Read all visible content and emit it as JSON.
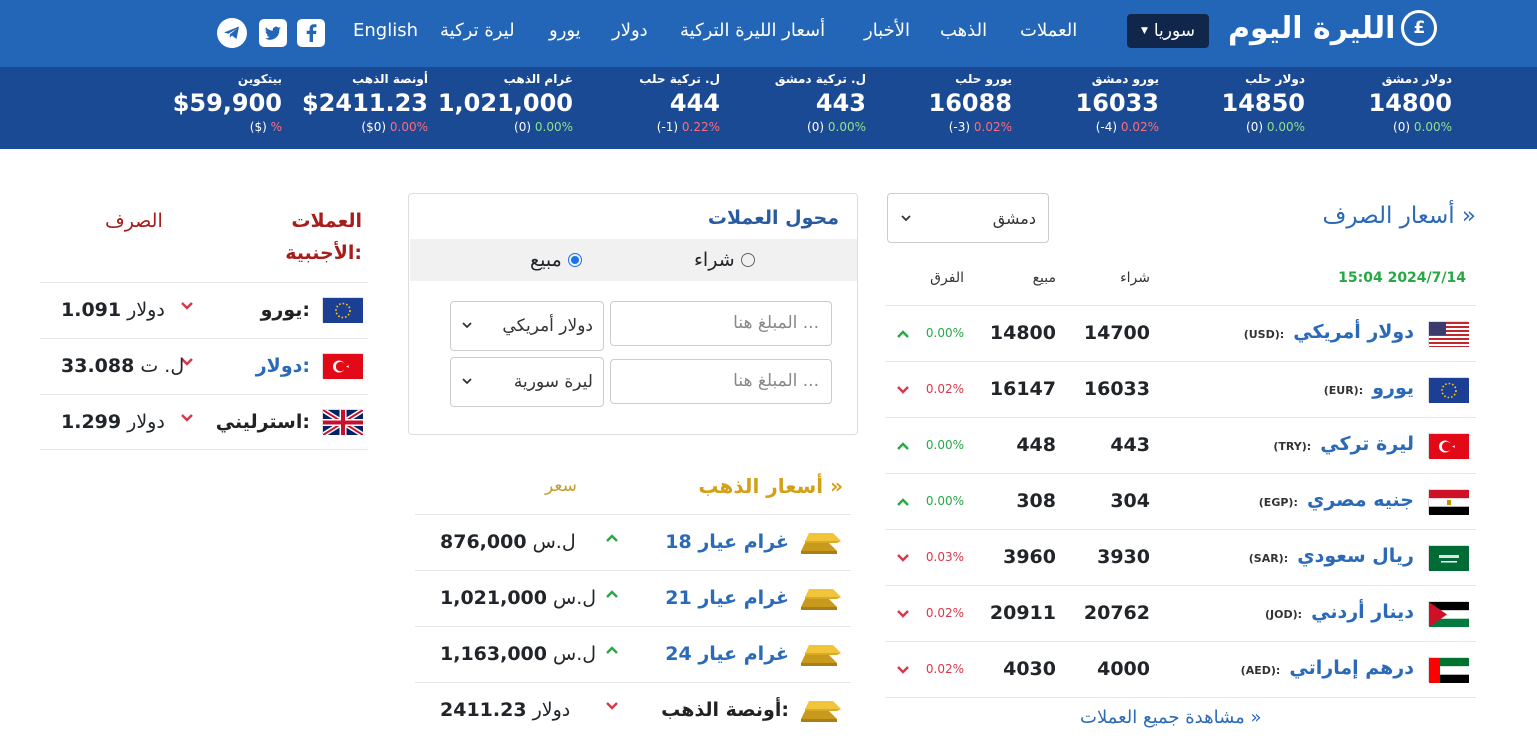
{
  "nav": {
    "logo_text": "الليرة اليوم",
    "country": "سوريا",
    "menu": [
      "العملات",
      "الذهب",
      "الأخبار",
      "أسعار الليرة التركية",
      "دولار",
      "يورو",
      "ليرة تركية",
      "English"
    ],
    "social": [
      "facebook-icon",
      "twitter-icon",
      "telegram-icon"
    ]
  },
  "ticker": [
    {
      "name": "دولار دمشق",
      "value": "14800",
      "delta": "(0)",
      "pct": "0.00%",
      "dir": "up"
    },
    {
      "name": "دولار حلب",
      "value": "14850",
      "delta": "(0)",
      "pct": "0.00%",
      "dir": "up"
    },
    {
      "name": "يورو دمشق",
      "value": "16033",
      "delta": "(-4)",
      "pct": "0.02%",
      "dir": "dn"
    },
    {
      "name": "يورو حلب",
      "value": "16088",
      "delta": "(-3)",
      "pct": "0.02%",
      "dir": "dn"
    },
    {
      "name": "ل. تركية دمشق",
      "value": "443",
      "delta": "(0)",
      "pct": "0.00%",
      "dir": "up"
    },
    {
      "name": "ل. تركية حلب",
      "value": "444",
      "delta": "(-1)",
      "pct": "0.22%",
      "dir": "dn"
    },
    {
      "name": "غرام الذهب",
      "value": "1,021,000",
      "delta": "(0)",
      "pct": "0.00%",
      "dir": "up"
    },
    {
      "name": "أونصة الذهب",
      "value": "$2411.23",
      "delta": "($0)",
      "pct": "0.00%",
      "dir": "dn"
    },
    {
      "name": "بيتكوين",
      "value": "$59,900",
      "delta": "($)",
      "pct": "%",
      "dir": "dn"
    }
  ],
  "rates": {
    "title": "أسعار الصرف »",
    "city": "دمشق",
    "timestamp": "15:04 2024/7/14",
    "col_buy": "شراء",
    "col_sell": "مبيع",
    "col_diff": "الفرق",
    "rows": [
      {
        "name": "دولار أمريكي",
        "code": "(USD):",
        "buy": "14700",
        "sell": "14800",
        "pct": "0.00%",
        "dir": "up",
        "flag": "us"
      },
      {
        "name": "يورو",
        "code": "(EUR):",
        "buy": "16033",
        "sell": "16147",
        "pct": "0.02%",
        "dir": "dn",
        "flag": "eu"
      },
      {
        "name": "ليرة تركي",
        "code": "(TRY):",
        "buy": "443",
        "sell": "448",
        "pct": "0.00%",
        "dir": "up",
        "flag": "tr"
      },
      {
        "name": "جنيه مصري",
        "code": "(EGP):",
        "buy": "304",
        "sell": "308",
        "pct": "0.00%",
        "dir": "up",
        "flag": "eg"
      },
      {
        "name": "ريال سعودي",
        "code": "(SAR):",
        "buy": "3930",
        "sell": "3960",
        "pct": "0.03%",
        "dir": "dn",
        "flag": "sa"
      },
      {
        "name": "دينار أردني",
        "code": "(JOD):",
        "buy": "20762",
        "sell": "20911",
        "pct": "0.02%",
        "dir": "dn",
        "flag": "jo"
      },
      {
        "name": "درهم إماراتي",
        "code": "(AED):",
        "buy": "4000",
        "sell": "4030",
        "pct": "0.02%",
        "dir": "dn",
        "flag": "ae"
      }
    ],
    "all_link": "مشاهدة جميع العملات »"
  },
  "converter": {
    "title": "محول العملات",
    "buy": "شراء",
    "sell": "مبيع",
    "placeholder": "المبلغ هنا ...",
    "currency1": "دولار أمريكي",
    "currency2": "ليرة سورية"
  },
  "gold": {
    "title": "أسعار الذهب »",
    "price_label": "سعر",
    "rows": [
      {
        "name": "غرام عيار 18",
        "price": "876,000",
        "unit": "ل.س",
        "dir": "up"
      },
      {
        "name": "غرام عيار 21",
        "price": "1,021,000",
        "unit": "ل.س",
        "dir": "up"
      },
      {
        "name": "غرام عيار 24",
        "price": "1,163,000",
        "unit": "ل.س",
        "dir": "up"
      },
      {
        "name": "أونصة الذهب:",
        "price": "2411.23",
        "unit": "دولار",
        "dir": "dn"
      }
    ]
  },
  "foreign": {
    "title": "العملات الأجنبية:",
    "col": "الصرف",
    "rows": [
      {
        "name": "يورو:",
        "price": "1.091",
        "unit": "دولار",
        "flag": "eu"
      },
      {
        "name": "دولار:",
        "price": "33.088",
        "unit": "ل. ت",
        "flag": "tr"
      },
      {
        "name": "استرليني:",
        "price": "1.299",
        "unit": "دولار",
        "flag": "gb"
      }
    ]
  }
}
